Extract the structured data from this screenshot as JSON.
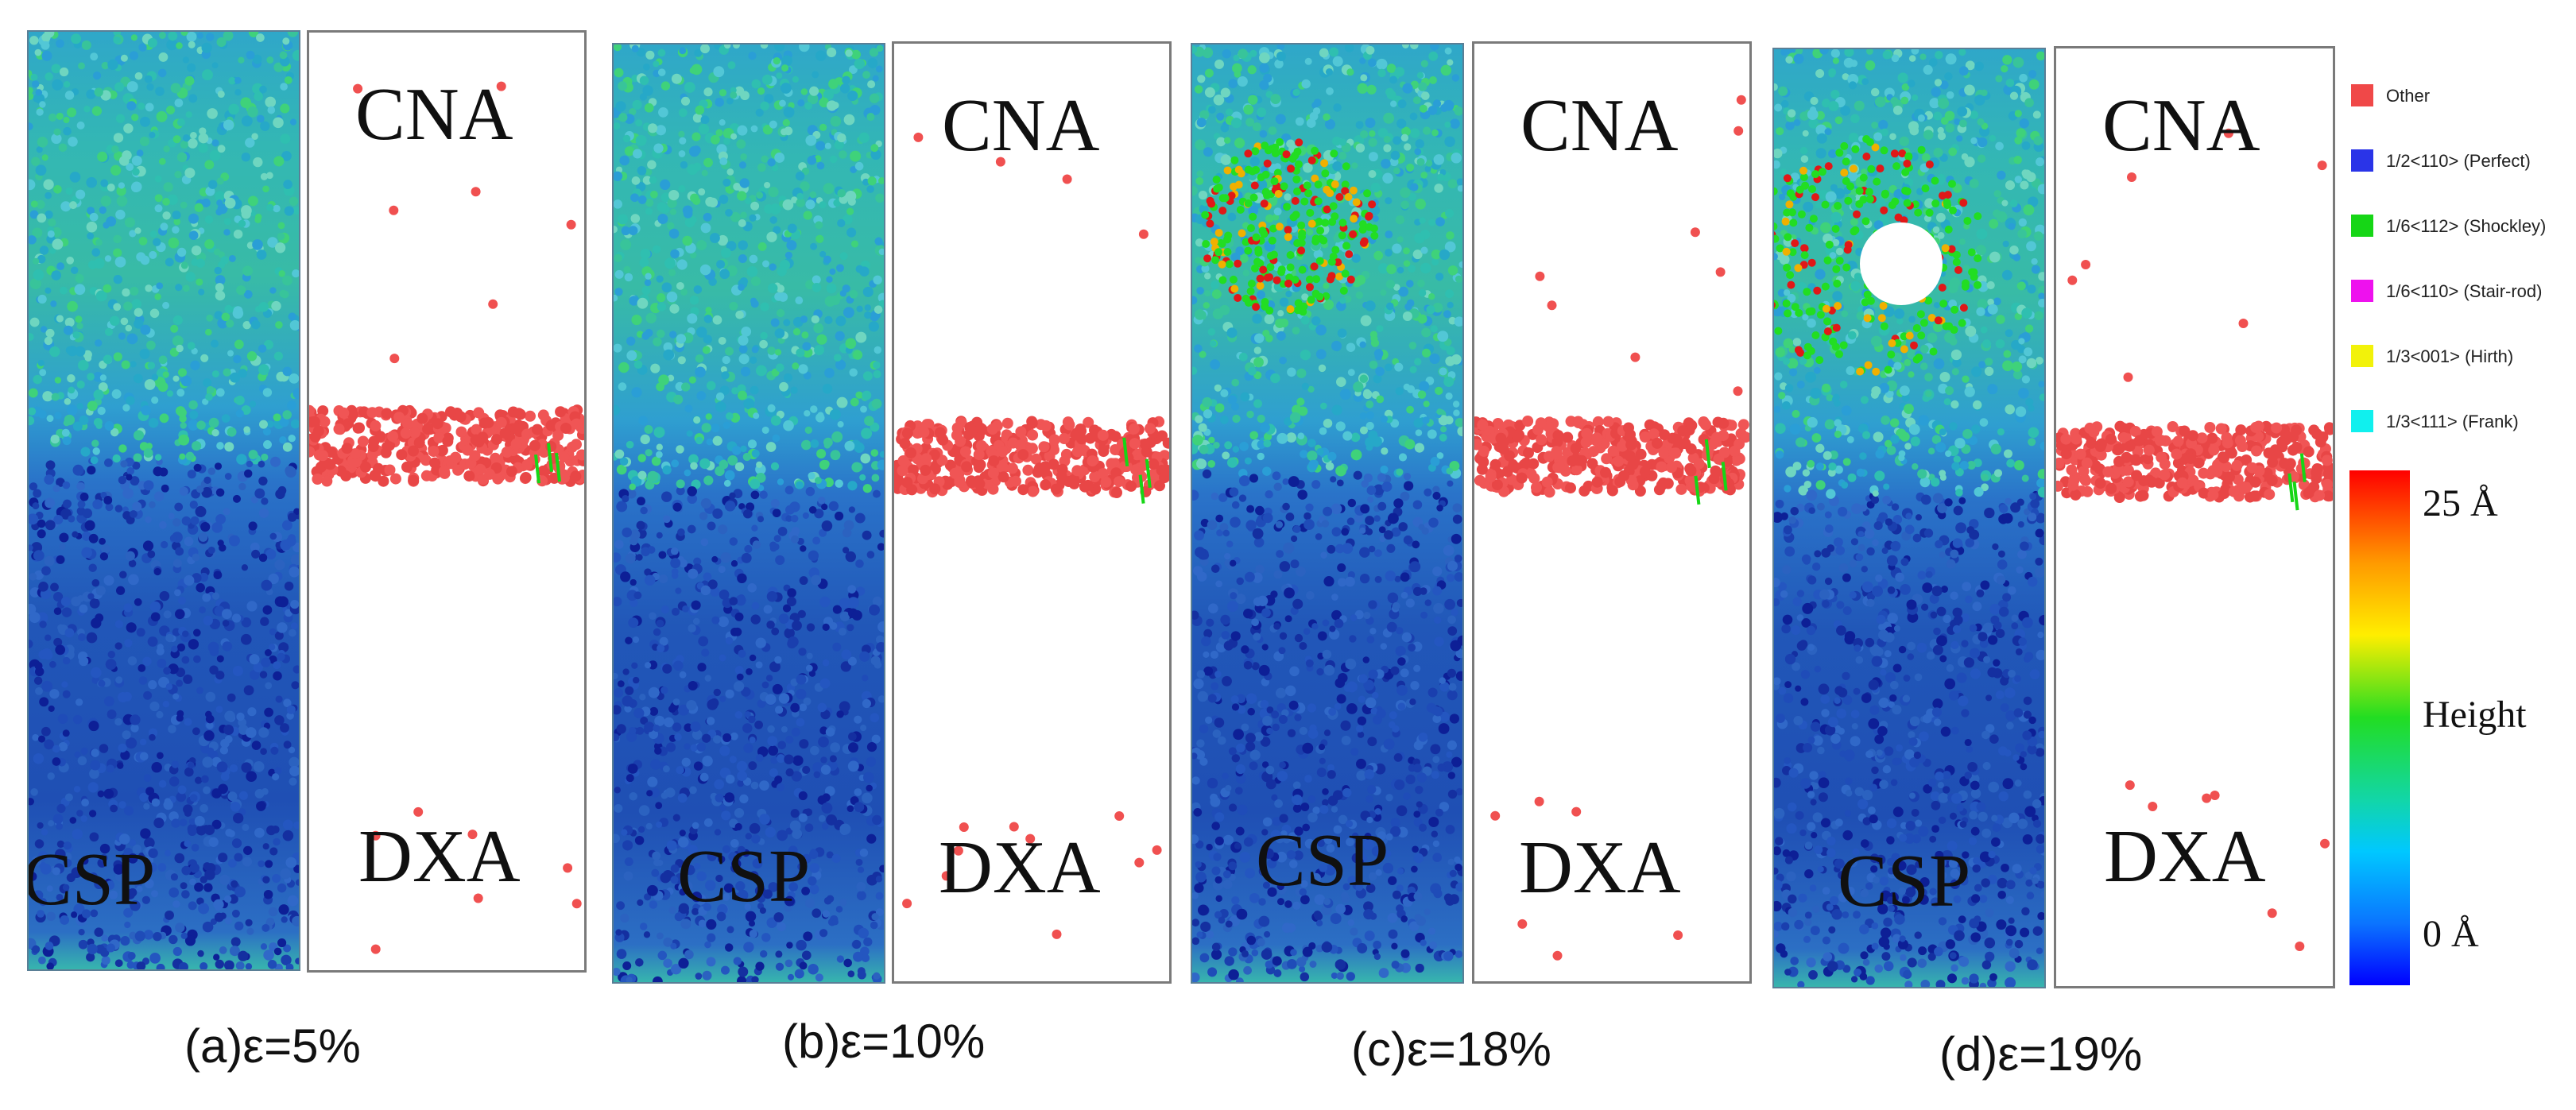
{
  "panels": [
    {
      "id": "a",
      "caption": "(a)ε=5%",
      "csp_label": "CSP",
      "cna_label": "CNA",
      "dxa_label": "DXA"
    },
    {
      "id": "b",
      "caption": "(b)ε=10%",
      "csp_label": "CSP",
      "cna_label": "CNA",
      "dxa_label": "DXA"
    },
    {
      "id": "c",
      "caption": "(c)ε=18%",
      "csp_label": "CSP",
      "cna_label": "CNA",
      "dxa_label": "DXA"
    },
    {
      "id": "d",
      "caption": "(d)ε=19%",
      "csp_label": "CSP",
      "cna_label": "CNA",
      "dxa_label": "DXA"
    }
  ],
  "legend": {
    "items": [
      {
        "label": "Other",
        "color": "#f04848"
      },
      {
        "label": "1/2<110> (Perfect)",
        "color": "#2a34e8"
      },
      {
        "label": "1/6<112> (Shockley)",
        "color": "#16d616"
      },
      {
        "label": "1/6<110> (Stair-rod)",
        "color": "#ee11ee"
      },
      {
        "label": "1/3<001> (Hirth)",
        "color": "#f2f20a"
      },
      {
        "label": "1/3<111> (Frank)",
        "color": "#10f0ee"
      }
    ]
  },
  "colorbar": {
    "max_label": "25 Å",
    "mid_label": "Height",
    "min_label": "0 Å"
  }
}
